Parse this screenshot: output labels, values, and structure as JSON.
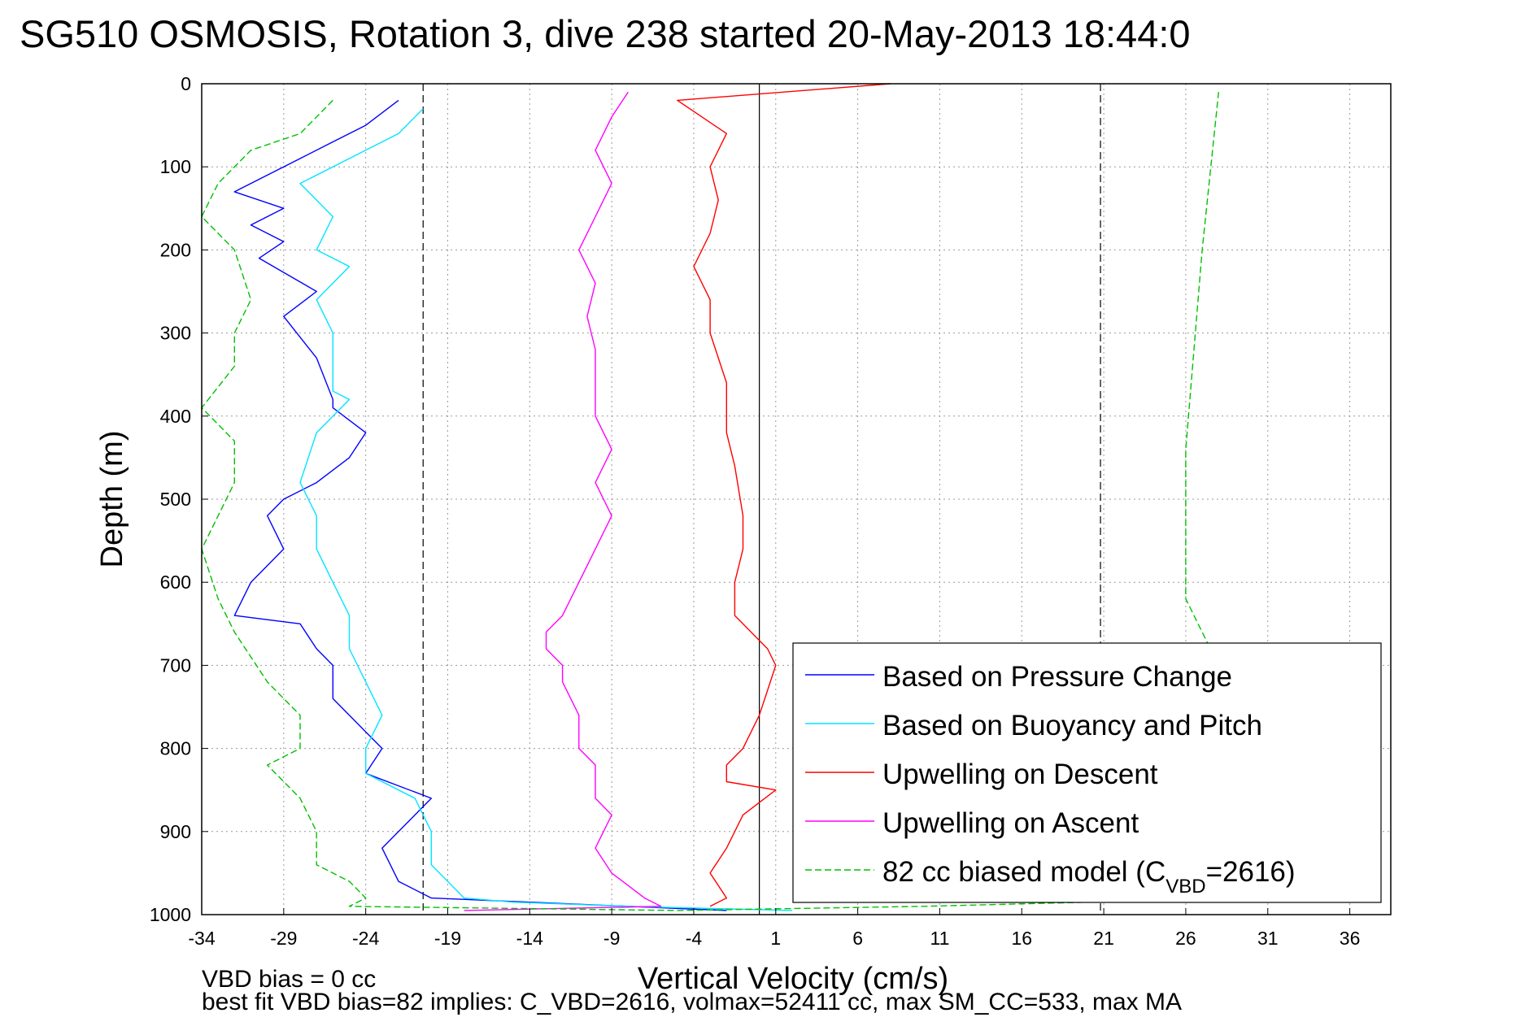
{
  "chart_data": {
    "type": "line",
    "title": "SG510 OSMOSIS, Rotation 3, dive 238 started 20-May-2013 18:44:0",
    "xlabel": "Vertical Velocity (cm/s)",
    "ylabel": "Depth (m)",
    "xlim": [
      -34,
      38.5
    ],
    "ylim": [
      0,
      1000
    ],
    "y_reversed": true,
    "grid": true,
    "x_ticks": [
      "-34",
      "-29",
      "-24",
      "-19",
      "-14",
      "-9",
      "-4",
      "1",
      "6",
      "11",
      "16",
      "21",
      "26",
      "31",
      "36"
    ],
    "y_ticks": [
      "0",
      "100",
      "200",
      "300",
      "400",
      "500",
      "600",
      "700",
      "800",
      "900",
      "1000"
    ],
    "reference_lines": [
      {
        "x": -20.5,
        "style": "dashed"
      },
      {
        "x": 0,
        "style": "solid"
      },
      {
        "x": 20.8,
        "style": "dashed"
      }
    ],
    "legend_position": "bottom-right",
    "series": [
      {
        "name": "Based on Pressure Change",
        "color": "#0000ff",
        "style": "solid",
        "x": [
          -22,
          -24,
          -26,
          -28,
          -30,
          -32,
          -29,
          -31,
          -29,
          -30.5,
          -27,
          -29,
          -27,
          -26,
          -26,
          -24,
          -25,
          -27,
          -29,
          -30,
          -29,
          -31,
          -32,
          -28,
          -27,
          -26,
          -26,
          -24,
          -23,
          -24,
          -20,
          -21,
          -23,
          -22,
          -20,
          -2
        ],
        "y": [
          20,
          50,
          70,
          90,
          110,
          130,
          150,
          170,
          190,
          210,
          250,
          280,
          330,
          380,
          390,
          420,
          450,
          480,
          500,
          520,
          560,
          600,
          640,
          650,
          680,
          700,
          740,
          780,
          800,
          830,
          860,
          880,
          920,
          960,
          980,
          995
        ]
      },
      {
        "name": "Based on Buoyancy and Pitch",
        "color": "#00e5ff",
        "style": "solid",
        "x": [
          -20.5,
          -22,
          -25,
          -28,
          -26,
          -27,
          -25,
          -27,
          -26,
          -26,
          -25,
          -27,
          -28,
          -27,
          -27,
          -26,
          -25,
          -25,
          -24,
          -23,
          -24,
          -24,
          -21,
          -20,
          -20,
          -19,
          -18,
          -15,
          -8,
          2
        ],
        "y": [
          30,
          60,
          90,
          120,
          160,
          200,
          220,
          260,
          300,
          370,
          380,
          420,
          480,
          520,
          560,
          600,
          640,
          680,
          720,
          760,
          800,
          830,
          860,
          900,
          940,
          960,
          980,
          985,
          990,
          995
        ]
      },
      {
        "name": "Upwelling on Descent",
        "color": "#ff0000",
        "style": "solid",
        "x": [
          8,
          -5,
          -2,
          -3,
          -2.5,
          -3,
          -4,
          -3,
          -3,
          -2,
          -2,
          -1.5,
          -1,
          -1,
          -1.5,
          -1.5,
          -0.5,
          0.5,
          1,
          0.5,
          0,
          -1,
          -2,
          -2,
          1,
          -1,
          -2,
          -3,
          -2,
          -3
        ],
        "y": [
          0,
          20,
          60,
          100,
          140,
          180,
          220,
          260,
          300,
          360,
          420,
          460,
          520,
          560,
          600,
          640,
          660,
          680,
          700,
          730,
          760,
          800,
          820,
          840,
          850,
          880,
          920,
          950,
          980,
          990
        ]
      },
      {
        "name": "Upwelling on Ascent",
        "color": "#ff00ff",
        "style": "solid",
        "x": [
          -8,
          -9,
          -10,
          -9,
          -10,
          -11,
          -10,
          -10.5,
          -10,
          -10,
          -10,
          -9,
          -10,
          -9,
          -10,
          -11,
          -12,
          -13,
          -13,
          -12,
          -12,
          -11,
          -11,
          -10,
          -10,
          -9,
          -10,
          -9,
          -7,
          -6,
          -18
        ],
        "y": [
          10,
          40,
          80,
          120,
          160,
          200,
          240,
          280,
          320,
          360,
          400,
          440,
          480,
          520,
          560,
          600,
          640,
          660,
          680,
          700,
          720,
          760,
          800,
          820,
          860,
          880,
          920,
          950,
          980,
          990,
          995
        ]
      },
      {
        "name": "82 cc biased model (C",
        "name_sub": "VBD",
        "name_suffix": "=2616)",
        "color": "#00c000",
        "style": "dashed",
        "x": [
          -26,
          -28,
          -31,
          -33,
          -34,
          -32,
          -31,
          -32,
          -32,
          -34,
          -32,
          -32,
          -33,
          -34,
          -33,
          -32,
          -30,
          -28,
          -28,
          -30,
          -28,
          -27,
          -27,
          -25,
          -24,
          -25,
          -5,
          10,
          20,
          25,
          28,
          28,
          26,
          26,
          26,
          26,
          27,
          28
        ],
        "y": [
          20,
          60,
          80,
          120,
          160,
          200,
          260,
          300,
          340,
          390,
          430,
          480,
          520,
          560,
          620,
          660,
          720,
          760,
          800,
          820,
          860,
          900,
          940,
          960,
          980,
          990,
          995,
          990,
          985,
          980,
          960,
          700,
          620,
          560,
          500,
          440,
          200,
          10
        ]
      }
    ],
    "footnotes": [
      "VBD bias = 0 cc",
      "best fit VBD bias=82 implies: C_VBD=2616, volmax=52411 cc, max SM_CC=533, max MA"
    ]
  }
}
